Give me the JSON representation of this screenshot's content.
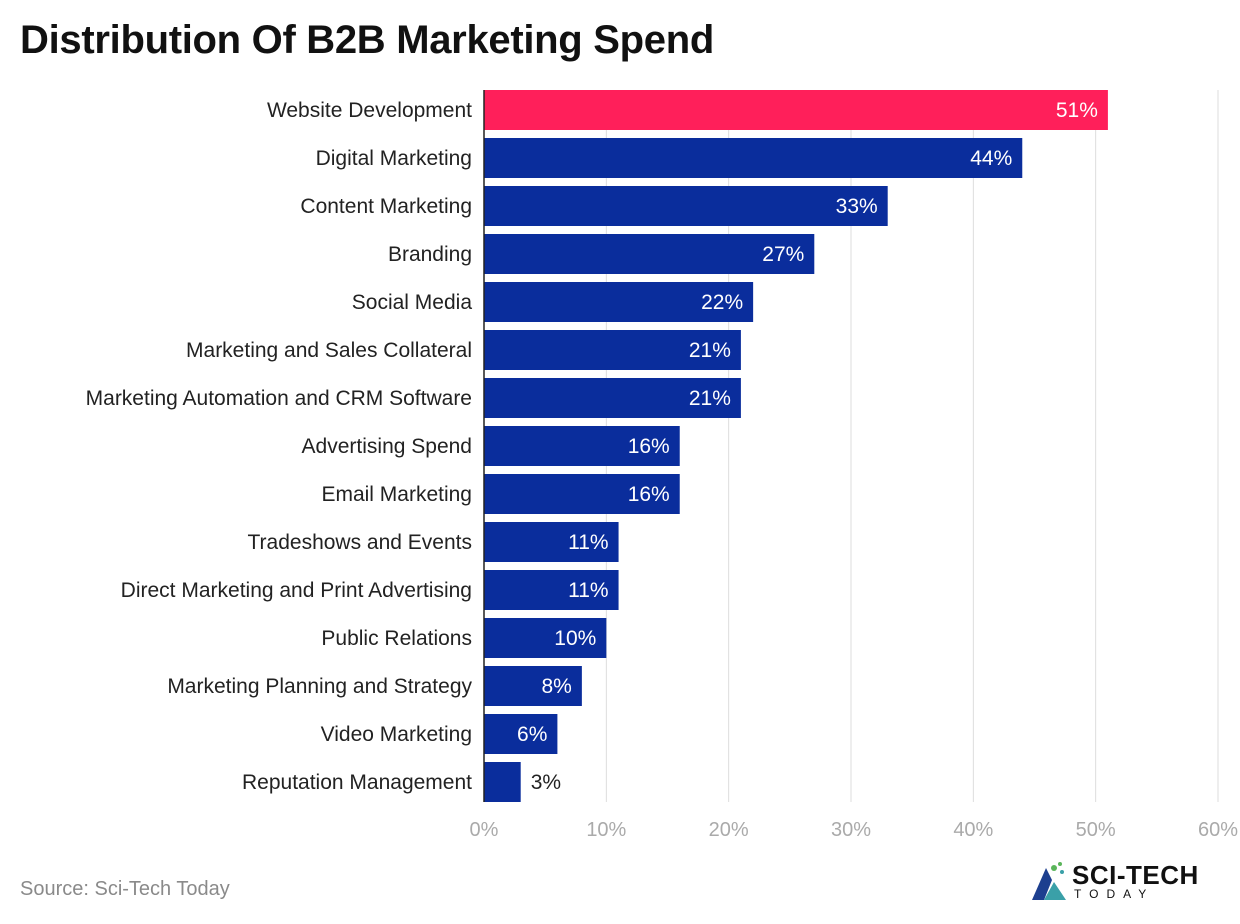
{
  "title": "Distribution Of B2B Marketing Spend",
  "source": "Source: Sci-Tech Today",
  "brand": {
    "name": "SCI-TECH",
    "sub": "TODAY"
  },
  "colors": {
    "highlight": "#ff1f5a",
    "bar": "#0a2d9c",
    "grid": "#dddddd",
    "tick": "#aaaaaa",
    "label": "#222222"
  },
  "chart_data": {
    "type": "bar",
    "orientation": "horizontal",
    "categories": [
      "Website Development",
      "Digital Marketing",
      "Content Marketing",
      "Branding",
      "Social Media",
      "Marketing and Sales Collateral",
      "Marketing Automation and CRM Software",
      "Advertising Spend",
      "Email Marketing",
      "Tradeshows and Events",
      "Direct Marketing and Print Advertising",
      "Public Relations",
      "Marketing Planning and Strategy",
      "Video Marketing",
      "Reputation Management"
    ],
    "values": [
      51,
      44,
      33,
      27,
      22,
      21,
      21,
      16,
      16,
      11,
      11,
      10,
      8,
      6,
      3
    ],
    "data_labels": [
      "51%",
      "44%",
      "33%",
      "27%",
      "22%",
      "21%",
      "21%",
      "16%",
      "16%",
      "11%",
      "11%",
      "10%",
      "8%",
      "6%",
      "3%"
    ],
    "highlight_index": 0,
    "xlim": [
      0,
      60
    ],
    "xticks": [
      0,
      10,
      20,
      30,
      40,
      50,
      60
    ],
    "xtick_labels": [
      "0%",
      "10%",
      "20%",
      "30%",
      "40%",
      "50%",
      "60%"
    ],
    "grid": true
  }
}
